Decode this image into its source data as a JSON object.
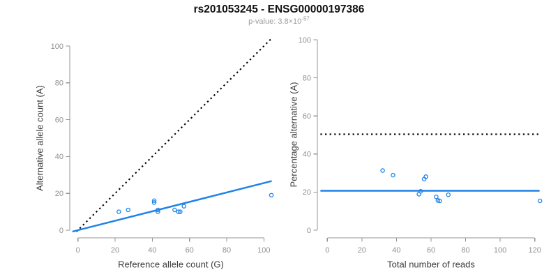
{
  "header": {
    "title": "rs201053245 - ENSG00000197386",
    "subtitle_prefix": "p-value: ",
    "subtitle_value": "3.8×10",
    "subtitle_exponent": "-57"
  },
  "colors": {
    "accent_blue": "#1e82e8",
    "dotted_black": "#000000",
    "axis_line_gray": "#949494",
    "tick_label_gray": "#8f8f8f",
    "axis_title_gray": "#3d3d3d",
    "subtitle_gray": "#9b9b9b"
  },
  "chart_data": [
    {
      "id": "ref-vs-alt-scatter",
      "type": "scatter",
      "xlabel": "Reference allele count (G)",
      "ylabel": "Alternative allele count (A)",
      "xticks": [
        0,
        20,
        40,
        60,
        80,
        100
      ],
      "yticks": [
        0,
        20,
        40,
        60,
        80,
        100
      ],
      "xlim": [
        0,
        105
      ],
      "ylim": [
        0,
        104
      ],
      "grid": false,
      "points": [
        [
          22,
          10
        ],
        [
          27,
          11
        ],
        [
          41,
          15
        ],
        [
          41,
          16
        ],
        [
          43,
          10
        ],
        [
          43,
          11
        ],
        [
          52,
          11
        ],
        [
          54,
          10
        ],
        [
          55,
          10
        ],
        [
          57,
          13
        ],
        [
          104,
          19
        ]
      ],
      "lines": [
        {
          "name": "identity-line",
          "style": "dotted",
          "color": "#000000",
          "slope": 1,
          "intercept": 0
        },
        {
          "name": "fit-line",
          "style": "solid",
          "color": "#1e82e8",
          "slope": 0.256,
          "intercept": 0
        }
      ]
    },
    {
      "id": "reads-vs-percentage-scatter",
      "type": "scatter",
      "xlabel": "Total number of reads",
      "ylabel": "Percentage alternative (A)",
      "xticks": [
        0,
        20,
        40,
        60,
        80,
        100,
        120
      ],
      "yticks": [
        0,
        20,
        40,
        60,
        80,
        100
      ],
      "xlim": [
        0,
        123
      ],
      "ylim": [
        0,
        100
      ],
      "grid": false,
      "points": [
        [
          32,
          31.3
        ],
        [
          38,
          28.9
        ],
        [
          53,
          18.9
        ],
        [
          54,
          20.4
        ],
        [
          56,
          26.8
        ],
        [
          57,
          28.1
        ],
        [
          63,
          17.5
        ],
        [
          64,
          15.6
        ],
        [
          65,
          15.4
        ],
        [
          70,
          18.6
        ],
        [
          123,
          15.4
        ]
      ],
      "lines": [
        {
          "name": "fifty-percent-line",
          "style": "dotted",
          "color": "#000000",
          "hline": 50.4
        },
        {
          "name": "mean-percentage-line",
          "style": "solid",
          "color": "#1e82e8",
          "hline": 20.7
        }
      ]
    }
  ]
}
